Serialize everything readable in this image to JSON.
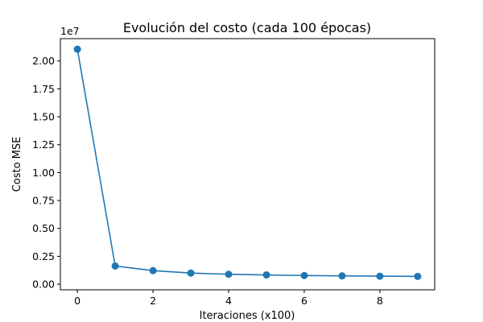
{
  "chart_data": {
    "type": "line",
    "title": "Evolución del costo (cada 100 épocas)",
    "xlabel": "Iteraciones (x100)",
    "ylabel": "Costo MSE",
    "y_offset_label": "1e7",
    "xlim": [
      -0.45,
      9.45
    ],
    "ylim": [
      -0.05,
      2.2
    ],
    "x_ticks": [
      0,
      2,
      4,
      6,
      8
    ],
    "x_tick_labels": [
      "0",
      "2",
      "4",
      "6",
      "8"
    ],
    "y_ticks": [
      0.0,
      0.25,
      0.5,
      0.75,
      1.0,
      1.25,
      1.5,
      1.75,
      2.0
    ],
    "y_tick_labels": [
      "0.00",
      "0.25",
      "0.50",
      "0.75",
      "1.00",
      "1.25",
      "1.50",
      "1.75",
      "2.00"
    ],
    "grid": false,
    "color": "#1f77b4",
    "marker": "circle",
    "x": [
      0,
      1,
      2,
      3,
      4,
      5,
      6,
      7,
      8,
      9
    ],
    "y": [
      2.105,
      0.163,
      0.122,
      0.1,
      0.089,
      0.083,
      0.078,
      0.075,
      0.072,
      0.07
    ]
  }
}
